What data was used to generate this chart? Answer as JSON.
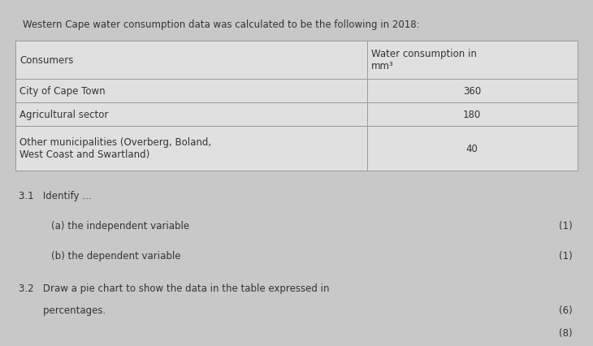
{
  "title": "Western Cape water consumption data was calculated to be the following in 2018:",
  "col1_header": "Consumers",
  "col2_header": "Water consumption in\nmm³",
  "row1_left": "City of Cape Town",
  "row2_left": "Agricultural sector",
  "row3_left": "Other municipalities (Overberg, Boland,\nWest Coast and Swartland)",
  "row1_right": "360",
  "row2_right": "180",
  "row3_right": "40",
  "section_31": "3.1   Identify ...",
  "item_a": "(a) the independent variable",
  "item_b": "(b) the dependent variable",
  "section_32_line1": "3.2   Draw a pie chart to show the data in the table expressed in",
  "section_32_line2": "        percentages.",
  "marks_a": "(1)",
  "marks_b": "(1)",
  "marks_32": "(6)",
  "marks_total": "(8)",
  "bg_color": "#c8c8c8",
  "cell_bg": "#e0e0e0",
  "text_color": "#333333",
  "border_color": "#999999",
  "title_fontsize": 8.5,
  "body_fontsize": 8.5,
  "table_fontsize": 8.5
}
